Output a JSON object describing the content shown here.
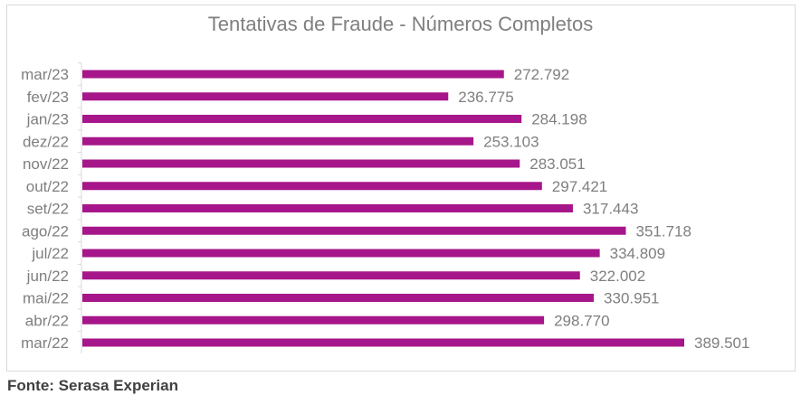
{
  "title": "Tentativas de Fraude - Números Completos",
  "source": "Fonte: Serasa Experian",
  "colors": {
    "bar": "#A6168A",
    "label": "#7f7f7f",
    "axis": "#d9d9d9"
  },
  "chart_data": {
    "type": "bar",
    "orientation": "horizontal",
    "title": "Tentativas de Fraude - Números Completos",
    "categories": [
      "mar/23",
      "fev/23",
      "jan/23",
      "dez/22",
      "nov/22",
      "out/22",
      "set/22",
      "ago/22",
      "jul/22",
      "jun/22",
      "mai/22",
      "abr/22",
      "mar/22"
    ],
    "values": [
      272792,
      236775,
      284198,
      253103,
      283051,
      297421,
      317443,
      351718,
      334809,
      322002,
      330951,
      298770,
      389501
    ],
    "value_labels": [
      "272.792",
      "236.775",
      "284.198",
      "253.103",
      "283.051",
      "297.421",
      "317.443",
      "351.718",
      "334.809",
      "322.002",
      "330.951",
      "298.770",
      "389.501"
    ],
    "xlim": [
      0,
      389501
    ],
    "grid": false,
    "legend": "none"
  }
}
